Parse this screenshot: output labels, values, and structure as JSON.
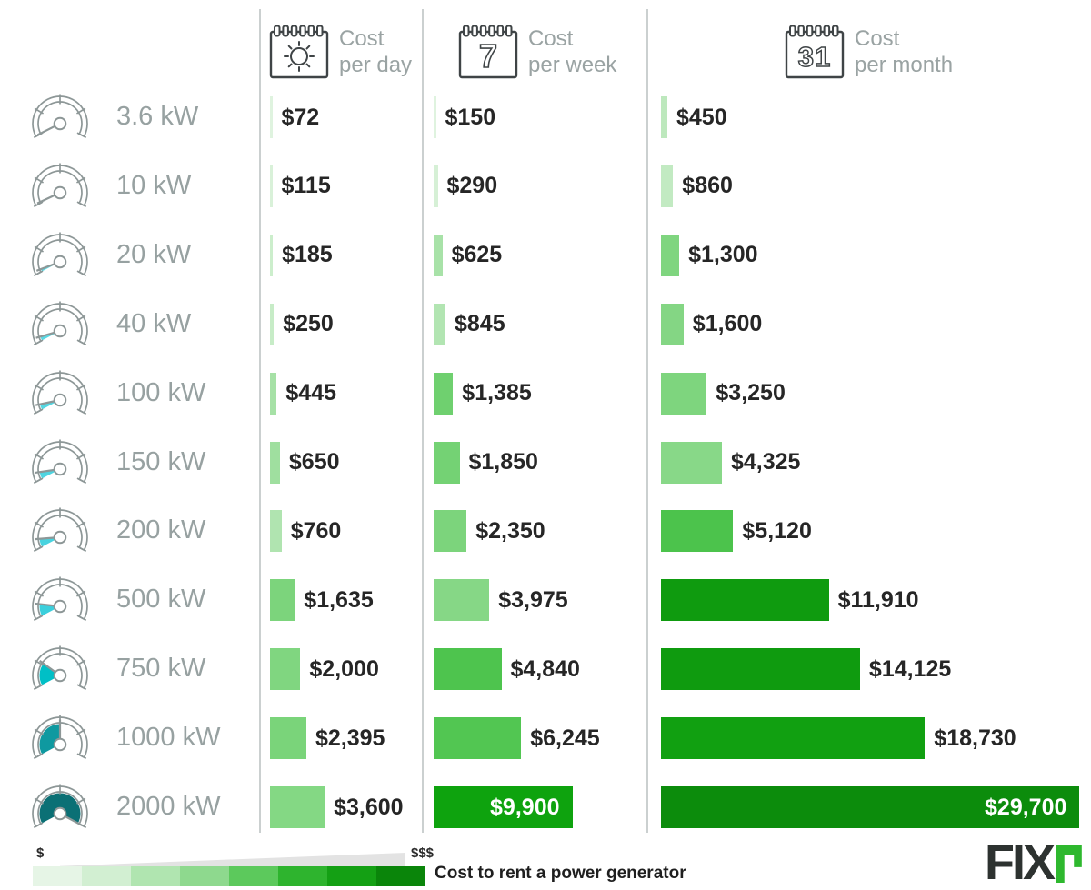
{
  "header": {
    "columns": [
      {
        "id": "day",
        "icon": "calendar-sun-icon",
        "label_line1": "Cost",
        "label_line2": "per day"
      },
      {
        "id": "week",
        "icon": "calendar-7-icon",
        "calendar_number": "7",
        "label_line1": "Cost",
        "label_line2": "per week"
      },
      {
        "id": "month",
        "icon": "calendar-31-icon",
        "calendar_number": "31",
        "label_line1": "Cost",
        "label_line2": "per month"
      }
    ]
  },
  "rows": [
    {
      "size": "3.6 kW",
      "gauge": {
        "fraction": 0.006,
        "color": null
      },
      "day": {
        "value": 72,
        "display": "$72",
        "color": "#dff3df"
      },
      "week": {
        "value": 150,
        "display": "$150",
        "color": "#dff3df"
      },
      "month": {
        "value": 450,
        "display": "$450",
        "color": "#bde8bd"
      }
    },
    {
      "size": "10 kW",
      "gauge": {
        "fraction": 0.013,
        "color": null
      },
      "day": {
        "value": 115,
        "display": "$115",
        "color": "#d9f1d9"
      },
      "week": {
        "value": 290,
        "display": "$290",
        "color": "#d6f0d6"
      },
      "month": {
        "value": 860,
        "display": "$860",
        "color": "#c2eac2"
      }
    },
    {
      "size": "20 kW",
      "gauge": {
        "fraction": 0.03,
        "color": "#5ed9e3"
      },
      "day": {
        "value": 185,
        "display": "$185",
        "color": "#cceecc"
      },
      "week": {
        "value": 625,
        "display": "$625",
        "color": "#a8e2a8"
      },
      "month": {
        "value": 1300,
        "display": "$1,300",
        "color": "#7fd57f"
      }
    },
    {
      "size": "40 kW",
      "gauge": {
        "fraction": 0.05,
        "color": "#5ad8e3"
      },
      "day": {
        "value": 250,
        "display": "$250",
        "color": "#c7ecc7"
      },
      "week": {
        "value": 845,
        "display": "$845",
        "color": "#b2e5b2"
      },
      "month": {
        "value": 1600,
        "display": "$1,600",
        "color": "#84d684"
      }
    },
    {
      "size": "100 kW",
      "gauge": {
        "fraction": 0.068,
        "color": "#55d7e2"
      },
      "day": {
        "value": 445,
        "display": "$445",
        "color": "#a6e1a6"
      },
      "week": {
        "value": 1385,
        "display": "$1,385",
        "color": "#6fd06f"
      },
      "month": {
        "value": 3250,
        "display": "$3,250",
        "color": "#7ed57e"
      }
    },
    {
      "size": "150 kW",
      "gauge": {
        "fraction": 0.084,
        "color": "#4fd5e1"
      },
      "day": {
        "value": 650,
        "display": "$650",
        "color": "#9fdf9f"
      },
      "week": {
        "value": 1850,
        "display": "$1,850",
        "color": "#74d274"
      },
      "month": {
        "value": 4325,
        "display": "$4,325",
        "color": "#88d888"
      }
    },
    {
      "size": "200 kW",
      "gauge": {
        "fraction": 0.1,
        "color": "#48d3df"
      },
      "day": {
        "value": 760,
        "display": "$760",
        "color": "#b0e4b0"
      },
      "week": {
        "value": 2350,
        "display": "$2,350",
        "color": "#7cd47c"
      },
      "month": {
        "value": 5120,
        "display": "$5,120",
        "color": "#4cc34c"
      }
    },
    {
      "size": "500 kW",
      "gauge": {
        "fraction": 0.145,
        "color": "#3bcfdc"
      },
      "day": {
        "value": 1635,
        "display": "$1,635",
        "color": "#7cd47c"
      },
      "week": {
        "value": 3975,
        "display": "$3,975",
        "color": "#86d786"
      },
      "month": {
        "value": 11910,
        "display": "$11,910",
        "color": "#0f9b0f"
      }
    },
    {
      "size": "750 kW",
      "gauge": {
        "fraction": 0.27,
        "color": "#00bfc6"
      },
      "day": {
        "value": 2000,
        "display": "$2,000",
        "color": "#80d680"
      },
      "week": {
        "value": 4840,
        "display": "$4,840",
        "color": "#4ec44e"
      },
      "month": {
        "value": 14125,
        "display": "$14,125",
        "color": "#0f9b0f"
      }
    },
    {
      "size": "1000 kW",
      "gauge": {
        "fraction": 0.5,
        "color": "#0f99a0"
      },
      "day": {
        "value": 2395,
        "display": "$2,395",
        "color": "#7ad47a"
      },
      "week": {
        "value": 6245,
        "display": "$6,245",
        "color": "#52c652"
      },
      "month": {
        "value": 18730,
        "display": "$18,730",
        "color": "#11a011"
      }
    },
    {
      "size": "2000 kW",
      "gauge": {
        "fraction": 1.0,
        "color": "#0b7075"
      },
      "day": {
        "value": 3600,
        "display": "$3,600",
        "color": "#84d884"
      },
      "week": {
        "value": 9900,
        "display": "$9,900",
        "color": "#0ea30e",
        "label_inside": true
      },
      "month": {
        "value": 29700,
        "display": "$29,700",
        "color": "#0c8c0c",
        "label_inside": true
      }
    }
  ],
  "legend": {
    "low_label": "$",
    "high_label": "$$$",
    "caption": "Cost to rent a power generator",
    "gradient": [
      "#e6f5e6",
      "#d2efd2",
      "#b0e5b0",
      "#8ed98e",
      "#5cc95c",
      "#2eb42e",
      "#14a014",
      "#0a850a"
    ]
  },
  "logo": {
    "text": "FIX",
    "r_color": "#2eb82e"
  },
  "chart_data": {
    "type": "bar",
    "orientation": "horizontal",
    "title": "Cost to rent a power generator",
    "categories": [
      "3.6 kW",
      "10 kW",
      "20 kW",
      "40 kW",
      "100 kW",
      "150 kW",
      "200 kW",
      "500 kW",
      "750 kW",
      "1000 kW",
      "2000 kW"
    ],
    "series": [
      {
        "name": "Cost per day",
        "values": [
          72,
          115,
          185,
          250,
          445,
          650,
          760,
          1635,
          2000,
          2395,
          3600
        ]
      },
      {
        "name": "Cost per week",
        "values": [
          150,
          290,
          625,
          845,
          1385,
          1850,
          2350,
          3975,
          4840,
          6245,
          9900
        ]
      },
      {
        "name": "Cost per month",
        "values": [
          450,
          860,
          1300,
          1600,
          3250,
          4325,
          5120,
          11910,
          14125,
          18730,
          29700
        ]
      }
    ],
    "units": "USD",
    "legend_position": "bottom-left"
  }
}
